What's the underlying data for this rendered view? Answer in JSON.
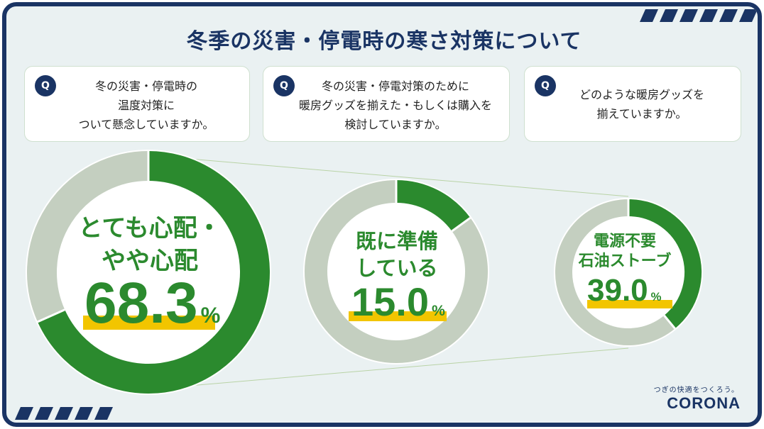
{
  "title": "冬季の災害・停電時の寒さ対策について",
  "questions": [
    {
      "badge": "Q",
      "lines": [
        "冬の災害・停電時の",
        "温度対策に",
        "ついて懸念していますか。"
      ]
    },
    {
      "badge": "Q",
      "lines": [
        "冬の災害・停電対策のために",
        "暖房グッズを揃えた・もしくは購入を",
        "検討していますか。"
      ]
    },
    {
      "badge": "Q",
      "lines": [
        "どのような暖房グッズを",
        "揃えていますか。"
      ]
    }
  ],
  "chart_data": [
    {
      "type": "pie",
      "categories": [
        "とても心配・やや心配",
        ""
      ],
      "values": [
        68.3,
        31.7
      ],
      "label_lines": [
        "とても心配・",
        "やや心配"
      ],
      "value_text": "68.3",
      "unit": "%",
      "colors": [
        "#2b8a2e",
        "#c4cfc0"
      ]
    },
    {
      "type": "pie",
      "categories": [
        "既に準備している",
        ""
      ],
      "values": [
        15.0,
        85.0
      ],
      "label_lines": [
        "既に準備",
        "している"
      ],
      "value_text": "15.0",
      "unit": "%",
      "colors": [
        "#2b8a2e",
        "#c4cfc0"
      ]
    },
    {
      "type": "pie",
      "categories": [
        "電源不要石油ストーブ",
        ""
      ],
      "values": [
        39.0,
        61.0
      ],
      "label_lines": [
        "電源不要",
        "石油ストーブ"
      ],
      "value_text": "39.0",
      "unit": "%",
      "colors": [
        "#2b8a2e",
        "#c4cfc0"
      ]
    }
  ],
  "brand": {
    "tagline": "つぎの快適をつくろう。",
    "name": "CORONA"
  },
  "colors": {
    "navy": "#1a3464",
    "green": "#2b8a2e",
    "gray": "#c4cfc0",
    "yellow": "#f2c500"
  }
}
